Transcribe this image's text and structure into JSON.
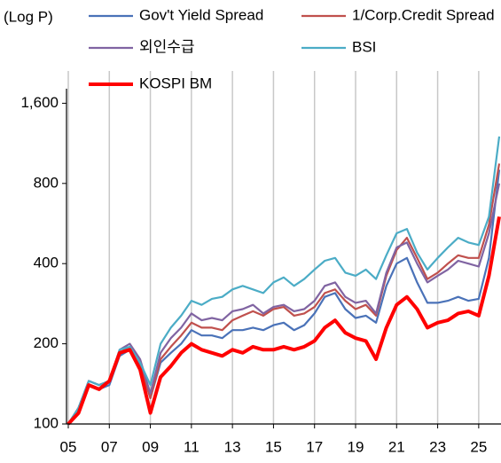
{
  "chart_data": {
    "type": "line",
    "ylabel": "(Log P)",
    "log_y": true,
    "grid_x": true,
    "x": [
      5,
      5.5,
      6,
      6.5,
      7,
      7.5,
      8,
      8.5,
      9,
      9.5,
      10,
      10.5,
      11,
      11.5,
      12,
      12.5,
      13,
      13.5,
      14,
      14.5,
      15,
      15.5,
      16,
      16.5,
      17,
      17.5,
      18,
      18.5,
      19,
      19.5,
      20,
      20.5,
      21,
      21.5,
      22,
      22.5,
      23,
      23.5,
      24,
      24.5,
      25,
      25.5,
      26
    ],
    "xlim": [
      5,
      26
    ],
    "xticks": [
      {
        "value": 5,
        "label": "05"
      },
      {
        "value": 7,
        "label": "07"
      },
      {
        "value": 9,
        "label": "09"
      },
      11,
      13,
      15,
      17,
      19,
      21,
      23,
      25
    ],
    "ylim": [
      100,
      1900
    ],
    "yticks": [
      100,
      200,
      400,
      800,
      {
        "value": 1600,
        "label": "1,600"
      }
    ],
    "series": [
      {
        "name": "Gov't Yield Spread",
        "color": "#4a72b8",
        "width": 2.2,
        "values": [
          100,
          115,
          140,
          135,
          140,
          180,
          190,
          165,
          125,
          170,
          185,
          200,
          225,
          215,
          215,
          210,
          225,
          225,
          230,
          225,
          235,
          240,
          225,
          235,
          260,
          300,
          310,
          270,
          250,
          255,
          240,
          330,
          400,
          420,
          340,
          285,
          285,
          290,
          300,
          290,
          295,
          420,
          900
        ]
      },
      {
        "name": "1/Corp.Credit Spread",
        "color": "#c0504d",
        "width": 2.2,
        "values": [
          100,
          115,
          145,
          140,
          145,
          185,
          195,
          170,
          125,
          175,
          195,
          215,
          240,
          230,
          230,
          225,
          245,
          255,
          265,
          255,
          270,
          275,
          255,
          260,
          275,
          310,
          320,
          290,
          270,
          280,
          255,
          360,
          450,
          500,
          420,
          350,
          370,
          400,
          430,
          420,
          420,
          560,
          950
        ]
      },
      {
        "name": "외인수급",
        "color": "#8064a2",
        "width": 2.2,
        "values": [
          100,
          115,
          145,
          140,
          145,
          190,
          200,
          175,
          130,
          185,
          210,
          230,
          260,
          245,
          250,
          245,
          265,
          270,
          280,
          260,
          275,
          280,
          265,
          270,
          290,
          330,
          340,
          300,
          285,
          290,
          260,
          370,
          460,
          480,
          400,
          340,
          360,
          380,
          410,
          400,
          390,
          520,
          800
        ]
      },
      {
        "name": "BSI",
        "color": "#4bacc6",
        "width": 2.2,
        "values": [
          100,
          115,
          145,
          140,
          145,
          190,
          195,
          170,
          140,
          200,
          230,
          255,
          290,
          280,
          295,
          300,
          320,
          330,
          320,
          310,
          340,
          355,
          330,
          350,
          380,
          410,
          420,
          370,
          360,
          380,
          350,
          430,
          520,
          540,
          440,
          380,
          420,
          460,
          500,
          480,
          470,
          600,
          1200
        ]
      },
      {
        "name": "KOSPI BM",
        "color": "#ff0000",
        "width": 4,
        "values": [
          100,
          110,
          140,
          135,
          145,
          185,
          190,
          160,
          110,
          150,
          165,
          185,
          200,
          190,
          185,
          180,
          190,
          185,
          195,
          190,
          190,
          195,
          190,
          195,
          205,
          230,
          245,
          220,
          210,
          205,
          175,
          230,
          280,
          300,
          270,
          230,
          240,
          245,
          260,
          265,
          255,
          360,
          600
        ]
      }
    ]
  }
}
